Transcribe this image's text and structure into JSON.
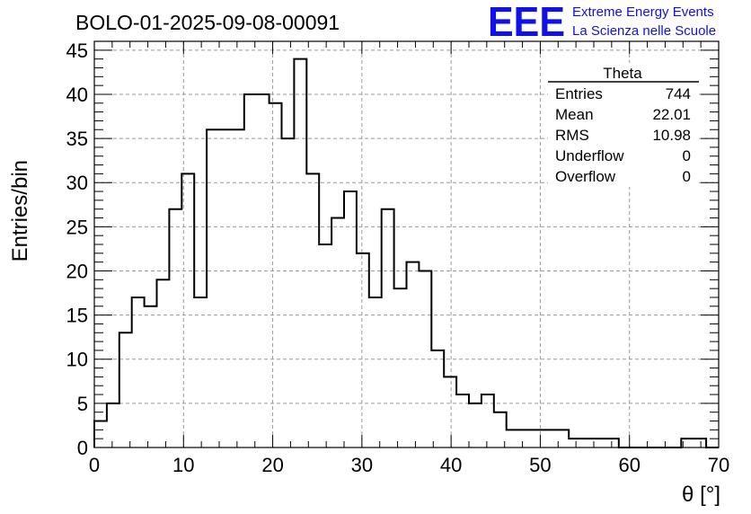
{
  "title": "BOLO-01-2025-09-08-00091",
  "logo": {
    "mark": "EEE",
    "line1": "Extreme Energy Events",
    "line2": "La Scienza nelle Scuole",
    "color": "#1010e8"
  },
  "stats": {
    "name": "Theta",
    "rows": [
      {
        "label": "Entries",
        "value": "744"
      },
      {
        "label": "Mean",
        "value": "22.01"
      },
      {
        "label": "RMS",
        "value": "10.98"
      },
      {
        "label": "Underflow",
        "value": "0"
      },
      {
        "label": "Overflow",
        "value": "0"
      }
    ]
  },
  "chart_data": {
    "type": "bar",
    "histogram": true,
    "xlabel": "θ [°]",
    "ylabel": "Entries/bin",
    "xlim": [
      0,
      70
    ],
    "ylim": [
      0,
      46
    ],
    "grid": true,
    "xticks": [
      0,
      10,
      20,
      30,
      40,
      50,
      60,
      70
    ],
    "yticks": [
      0,
      5,
      10,
      15,
      20,
      25,
      30,
      35,
      40,
      45
    ],
    "bin_edges": [
      0,
      1.4,
      2.8,
      4.2,
      5.6,
      7.0,
      8.4,
      9.8,
      11.2,
      12.6,
      14.0,
      15.4,
      16.8,
      18.2,
      19.6,
      21.0,
      22.4,
      23.8,
      25.2,
      26.6,
      28.0,
      29.4,
      30.8,
      32.2,
      33.6,
      35.0,
      36.4,
      37.8,
      39.2,
      40.6,
      42.0,
      43.4,
      44.8,
      46.2,
      47.6,
      49.0,
      50.4,
      51.8,
      53.2,
      54.6,
      56.0,
      57.4,
      58.8,
      60.2,
      61.6,
      63.0,
      64.4,
      65.8,
      67.2,
      68.6,
      70.0
    ],
    "values": [
      3,
      5,
      13,
      17,
      16,
      19,
      27,
      31,
      17,
      36,
      36,
      36,
      40,
      40,
      39,
      35,
      44,
      31,
      23,
      26,
      29,
      22,
      17,
      27,
      18,
      21,
      20,
      11,
      8,
      6,
      5,
      6,
      4,
      2,
      2,
      2,
      2,
      2,
      1,
      1,
      1,
      1,
      0,
      0,
      0,
      0,
      0,
      1,
      1,
      0
    ]
  }
}
